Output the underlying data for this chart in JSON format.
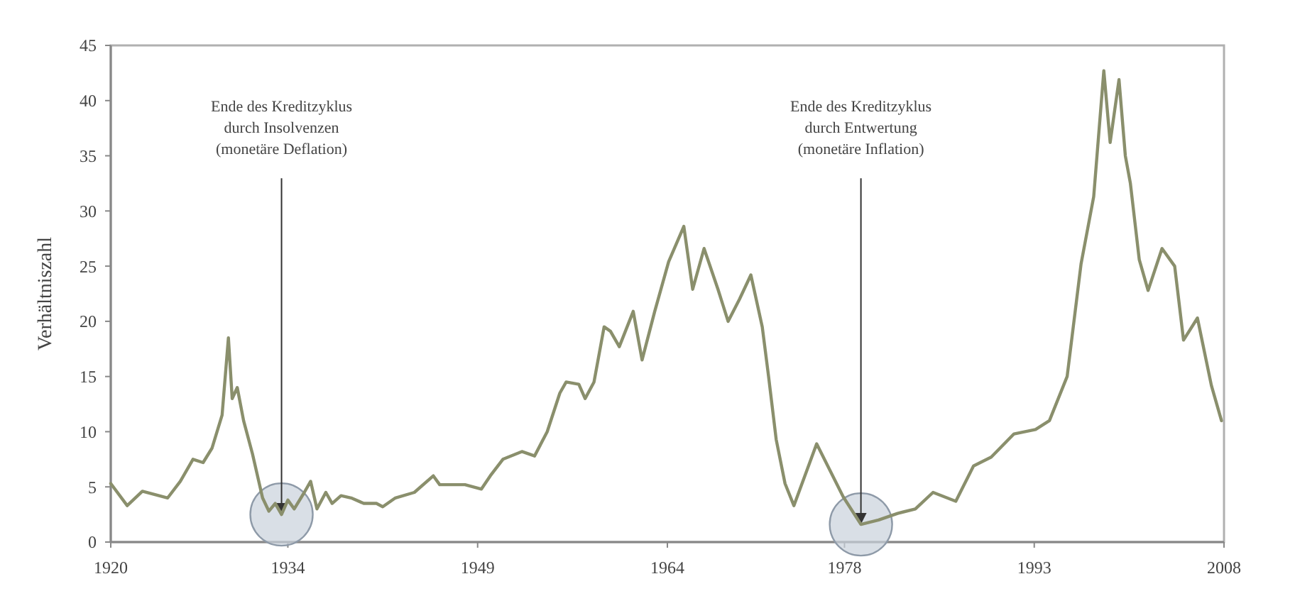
{
  "chart_data": {
    "type": "line",
    "ylabel": "Verhältniszahl",
    "xlim": [
      1920,
      2008
    ],
    "ylim": [
      0,
      45
    ],
    "xticks": [
      1920,
      1934,
      1949,
      1964,
      1978,
      1993,
      2008
    ],
    "yticks": [
      0,
      5,
      10,
      15,
      20,
      25,
      30,
      35,
      40,
      45
    ],
    "grid": false,
    "marker": "none",
    "line_style": "solid",
    "annotations": [
      {
        "text": "Ende des Kreditzyklus\ndurch Insolvenzen\n(monetäre Deflation)",
        "x": 1933.5,
        "y": 2.5
      },
      {
        "text": "Ende des Kreditzyklus\ndurch Entwertung\n(monetäre Inflation)",
        "x": 1979.3,
        "y": 1.6
      }
    ],
    "series": [
      {
        "color": "#8a8f6c",
        "x": [
          1920,
          1921.3,
          1922.5,
          1923.5,
          1924.5,
          1925.5,
          1926.5,
          1927.3,
          1928,
          1928.8,
          1929.3,
          1929.6,
          1930,
          1930.5,
          1931.2,
          1932,
          1932.5,
          1933,
          1933.5,
          1934,
          1934.5,
          1935.3,
          1935.8,
          1936.3,
          1937,
          1937.5,
          1938.2,
          1939,
          1940,
          1941,
          1941.5,
          1942.5,
          1944,
          1945.5,
          1946,
          1948,
          1949.3,
          1950,
          1951,
          1952.5,
          1953.5,
          1954.5,
          1955.5,
          1956,
          1957,
          1957.5,
          1958.2,
          1959,
          1959.5,
          1960.2,
          1961.3,
          1962,
          1963,
          1964.1,
          1965.3,
          1966,
          1966.9,
          1968,
          1968.8,
          1969.7,
          1970.6,
          1971.5,
          1972,
          1972.6,
          1973.3,
          1974,
          1975.8,
          1977.9,
          1979.3,
          1980.7,
          1982.2,
          1983.6,
          1985,
          1986.8,
          1988.2,
          1989.6,
          1991.4,
          1993.1,
          1994.2,
          1995.6,
          1996.7,
          1997.7,
          1998.5,
          1999,
          1999.7,
          2000.2,
          2000.6,
          2001.3,
          2002,
          2003.1,
          2004.1,
          2004.8,
          2005.9,
          2007,
          2007.8
        ],
        "values": [
          5.3,
          3.3,
          4.6,
          4.3,
          4,
          5.5,
          7.5,
          7.2,
          8.5,
          11.5,
          18.5,
          13,
          14,
          11,
          8,
          4,
          2.8,
          3.5,
          2.5,
          3.8,
          3,
          4.5,
          5.5,
          3,
          4.5,
          3.5,
          4.2,
          4,
          3.5,
          3.5,
          3.2,
          4,
          4.5,
          6,
          5.2,
          5.2,
          4.8,
          6,
          7.5,
          8.2,
          7.8,
          10,
          13.5,
          14.5,
          14.3,
          13,
          14.5,
          19.5,
          19.1,
          17.7,
          20.9,
          16.5,
          20.9,
          25.4,
          28.6,
          22.9,
          26.6,
          22.9,
          20,
          22,
          24.2,
          19.5,
          15,
          9.3,
          5.3,
          3.3,
          8.9,
          4.1,
          1.6,
          2,
          2.6,
          3,
          4.5,
          3.7,
          6.9,
          7.7,
          9.8,
          10.2,
          11,
          15,
          25.2,
          31.3,
          42.7,
          36.2,
          41.9,
          35,
          32.5,
          25.6,
          22.8,
          26.6,
          25,
          18.3,
          20.3,
          14.2,
          11
        ]
      }
    ]
  }
}
